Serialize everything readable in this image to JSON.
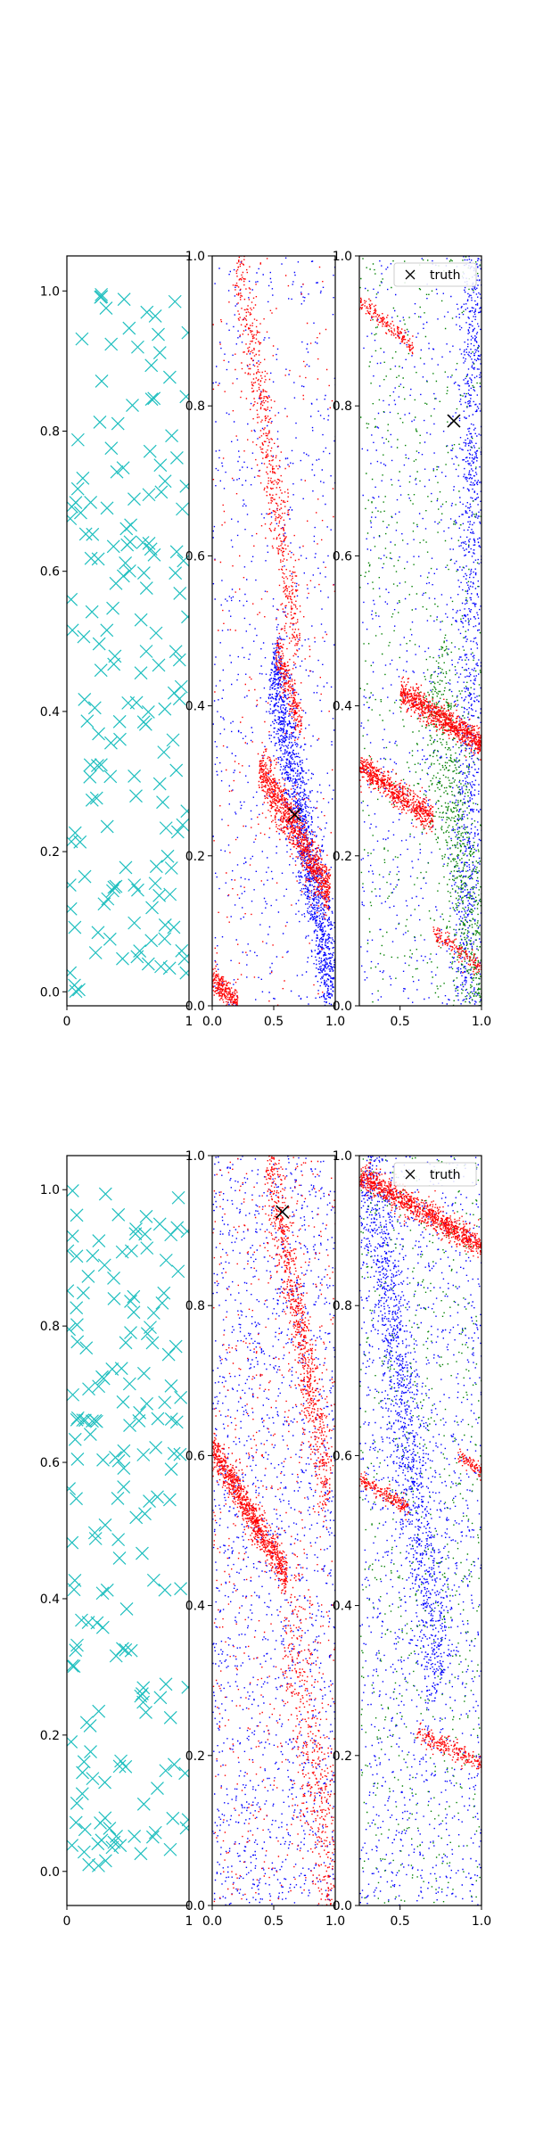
{
  "chart_data": [
    {
      "type": "scatter",
      "panel": "row1-left",
      "marker": "x",
      "color": "#1fbfbf",
      "xlim": [
        0,
        1
      ],
      "ylim": [
        -0.02,
        1.05
      ],
      "xticks": [
        "0",
        "1"
      ],
      "yticks": [
        "0.0",
        "0.2",
        "0.4",
        "0.6",
        "0.8",
        "1.0"
      ],
      "seed": 11,
      "count": 165
    },
    {
      "type": "scatter",
      "panel": "row1-middle",
      "xlim": [
        0,
        1
      ],
      "ylim": [
        0,
        1
      ],
      "xticks": [
        "0.0",
        "0.5",
        "1.0"
      ],
      "yticks": [
        "0.0",
        "0.2",
        "0.4",
        "0.6",
        "0.8",
        "1.0"
      ],
      "series": [
        {
          "color": "#0000ff",
          "clusters": [
            {
              "type": "uniform",
              "n": 700,
              "x": [
                0,
                1
              ],
              "y": [
                0,
                1
              ]
            },
            {
              "type": "band",
              "n": 1600,
              "start": [
                0.48,
                0.46
              ],
              "end": [
                0.98,
                0.02
              ],
              "width": 0.08
            }
          ]
        },
        {
          "color": "#ff0000",
          "clusters": [
            {
              "type": "band",
              "n": 650,
              "start": [
                0.2,
                1.0
              ],
              "end": [
                0.7,
                0.48
              ],
              "width": 0.07
            },
            {
              "type": "band",
              "n": 1100,
              "start": [
                0.38,
                0.32
              ],
              "end": [
                0.95,
                0.15
              ],
              "width": 0.035
            },
            {
              "type": "band",
              "n": 280,
              "start": [
                0.0,
                0.04
              ],
              "end": [
                0.2,
                0.0
              ],
              "width": 0.02
            },
            {
              "type": "band",
              "n": 260,
              "start": [
                0.52,
                0.48
              ],
              "end": [
                0.72,
                0.37
              ],
              "width": 0.03
            },
            {
              "type": "uniform",
              "n": 250,
              "x": [
                0,
                1
              ],
              "y": [
                0,
                1
              ]
            }
          ]
        }
      ],
      "truth": [
        {
          "x": 0.67,
          "y": 0.255
        }
      ]
    },
    {
      "type": "scatter",
      "panel": "row1-right",
      "xlim": [
        0.25,
        1.0
      ],
      "ylim": [
        0,
        1
      ],
      "xticks": [
        "0.5",
        "1.0"
      ],
      "yticks": [
        "0.0",
        "0.2",
        "0.4",
        "0.6",
        "0.8",
        "1.0"
      ],
      "legend": {
        "label": "truth",
        "placement": "top-right"
      },
      "series": [
        {
          "color": "#0000ff",
          "clusters": [
            {
              "type": "uniform",
              "n": 700,
              "x": [
                0.25,
                1.0
              ],
              "y": [
                0,
                1
              ]
            },
            {
              "type": "band",
              "n": 1200,
              "start": [
                0.95,
                1.0
              ],
              "end": [
                0.9,
                0.0
              ],
              "width": 0.1
            }
          ]
        },
        {
          "color": "#008000",
          "clusters": [
            {
              "type": "uniform",
              "n": 600,
              "x": [
                0.25,
                1.0
              ],
              "y": [
                0,
                1
              ]
            },
            {
              "type": "band",
              "n": 800,
              "start": [
                0.7,
                0.45
              ],
              "end": [
                1.0,
                0.0
              ],
              "width": 0.12
            }
          ]
        },
        {
          "color": "#ff0000",
          "clusters": [
            {
              "type": "band",
              "n": 700,
              "start": [
                0.25,
                0.32
              ],
              "end": [
                0.7,
                0.25
              ],
              "width": 0.018
            },
            {
              "type": "band",
              "n": 900,
              "start": [
                0.5,
                0.42
              ],
              "end": [
                1.0,
                0.35
              ],
              "width": 0.018
            },
            {
              "type": "band",
              "n": 180,
              "start": [
                0.25,
                0.94
              ],
              "end": [
                0.58,
                0.88
              ],
              "width": 0.012
            },
            {
              "type": "band",
              "n": 150,
              "start": [
                0.7,
                0.1
              ],
              "end": [
                1.0,
                0.05
              ],
              "width": 0.012
            }
          ]
        }
      ],
      "truth": [
        {
          "x": 0.83,
          "y": 0.78
        }
      ]
    },
    {
      "type": "scatter",
      "panel": "row2-left",
      "marker": "x",
      "color": "#1fbfbf",
      "xlim": [
        0,
        1
      ],
      "ylim": [
        -0.05,
        1.05
      ],
      "xticks": [
        "0",
        "1"
      ],
      "yticks": [
        "0.0",
        "0.2",
        "0.4",
        "0.6",
        "0.8",
        "1.0"
      ],
      "seed": 23,
      "count": 175
    },
    {
      "type": "scatter",
      "panel": "row2-middle",
      "xlim": [
        0,
        1
      ],
      "ylim": [
        0,
        1
      ],
      "xticks": [
        "0.0",
        "0.5",
        "1.0"
      ],
      "yticks": [
        "0.0",
        "0.2",
        "0.4",
        "0.6",
        "0.8",
        "1.0"
      ],
      "series": [
        {
          "color": "#0000ff",
          "clusters": [
            {
              "type": "uniform",
              "n": 1800,
              "x": [
                0,
                1
              ],
              "y": [
                0,
                1
              ]
            }
          ]
        },
        {
          "color": "#ff0000",
          "clusters": [
            {
              "type": "band",
              "n": 1000,
              "start": [
                0.0,
                0.61
              ],
              "end": [
                0.6,
                0.44
              ],
              "width": 0.025
            },
            {
              "type": "band",
              "n": 900,
              "start": [
                0.45,
                1.0
              ],
              "end": [
                0.95,
                0.55
              ],
              "width": 0.06
            },
            {
              "type": "band",
              "n": 500,
              "start": [
                0.6,
                0.4
              ],
              "end": [
                1.0,
                0.0
              ],
              "width": 0.12
            },
            {
              "type": "uniform",
              "n": 700,
              "x": [
                0,
                1
              ],
              "y": [
                0,
                1
              ]
            }
          ]
        }
      ],
      "truth": [
        {
          "x": 0.57,
          "y": 0.925
        }
      ]
    },
    {
      "type": "scatter",
      "panel": "row2-right",
      "xlim": [
        0.25,
        1.0
      ],
      "ylim": [
        0,
        1
      ],
      "xticks": [
        "0.5",
        "1.0"
      ],
      "yticks": [
        "0.0",
        "0.2",
        "0.4",
        "0.6",
        "0.8",
        "1.0"
      ],
      "legend": {
        "label": "truth",
        "placement": "top-right"
      },
      "series": [
        {
          "color": "#0000ff",
          "clusters": [
            {
              "type": "uniform",
              "n": 1400,
              "x": [
                0.25,
                1.0
              ],
              "y": [
                0,
                1
              ]
            },
            {
              "type": "band",
              "n": 1400,
              "start": [
                0.3,
                1.0
              ],
              "end": [
                0.75,
                0.3
              ],
              "width": 0.1
            }
          ]
        },
        {
          "color": "#008000",
          "clusters": [
            {
              "type": "uniform",
              "n": 700,
              "x": [
                0.25,
                1.0
              ],
              "y": [
                0,
                1
              ]
            }
          ]
        },
        {
          "color": "#ff0000",
          "clusters": [
            {
              "type": "band",
              "n": 1100,
              "start": [
                0.25,
                0.975
              ],
              "end": [
                1.0,
                0.88
              ],
              "width": 0.018
            },
            {
              "type": "band",
              "n": 200,
              "start": [
                0.25,
                0.57
              ],
              "end": [
                0.55,
                0.53
              ],
              "width": 0.012
            },
            {
              "type": "band",
              "n": 240,
              "start": [
                0.6,
                0.23
              ],
              "end": [
                1.0,
                0.19
              ],
              "width": 0.012
            },
            {
              "type": "band",
              "n": 100,
              "start": [
                0.85,
                0.6
              ],
              "end": [
                1.0,
                0.58
              ],
              "width": 0.01
            }
          ]
        }
      ]
    }
  ]
}
